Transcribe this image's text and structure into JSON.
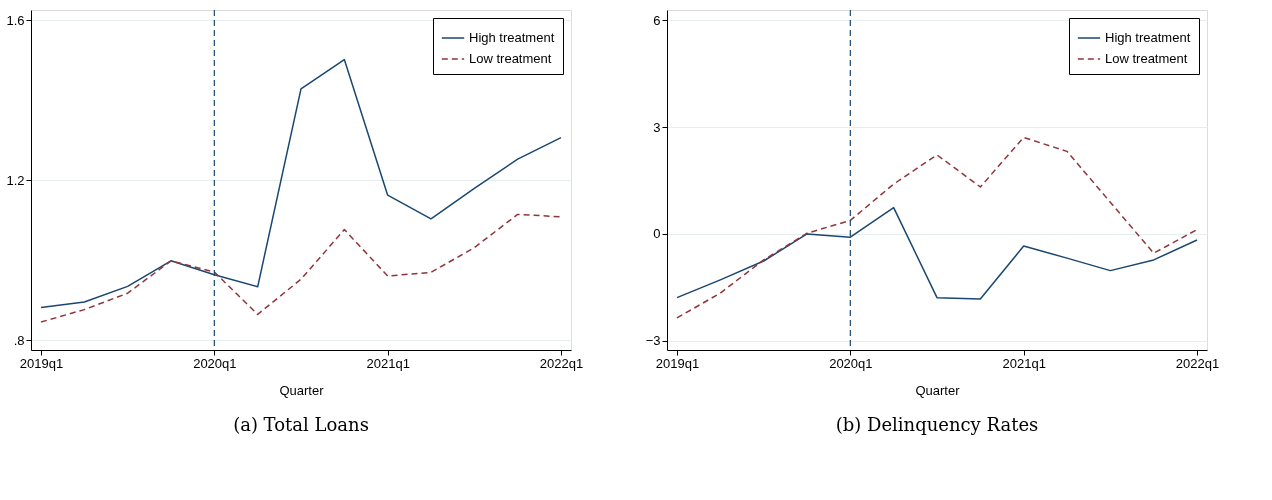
{
  "chart_data": [
    {
      "type": "line",
      "title": "(a) Total Loans",
      "xlabel": "Quarter",
      "categories": [
        "2019q1",
        null,
        null,
        null,
        "2020q1",
        null,
        null,
        null,
        "2021q1",
        null,
        null,
        null,
        "2022q1"
      ],
      "series": [
        {
          "name": "High treatment",
          "color": "#1a476f",
          "line_style": "solid",
          "values": [
            0.882,
            0.896,
            0.935,
            0.999,
            0.964,
            0.934,
            1.429,
            1.502,
            1.163,
            1.104,
            1.18,
            1.253,
            1.307
          ]
        },
        {
          "name": "Low treatment",
          "color": "#90353b",
          "line_style": "dashed",
          "values": [
            0.846,
            0.877,
            0.918,
            0.999,
            0.971,
            0.865,
            0.953,
            1.077,
            0.961,
            0.97,
            1.032,
            1.115,
            1.109
          ]
        }
      ],
      "ylim": [
        0.776,
        1.626
      ],
      "yticks": [
        {
          "value": 0.8,
          "label": ".8"
        },
        1.2,
        1.6
      ],
      "ref_lines": [
        {
          "axis": "x",
          "value": "2020q1",
          "color": "#1a476f",
          "line_style": "dashed"
        }
      ],
      "grid": "y",
      "legend": "top right",
      "marker": "none"
    },
    {
      "type": "line",
      "title": "(b) Delinquency Rates",
      "xlabel": "Quarter",
      "categories": [
        "2019q1",
        null,
        null,
        null,
        "2020q1",
        null,
        null,
        null,
        "2021q1",
        null,
        null,
        null,
        "2022q1"
      ],
      "series": [
        {
          "name": "High treatment",
          "color": "#1a476f",
          "line_style": "solid",
          "values": [
            -1.79,
            -1.29,
            -0.76,
            0,
            -0.09,
            0.74,
            -1.79,
            -1.83,
            -0.34,
            -0.68,
            -1.03,
            -0.73,
            -0.17
          ]
        },
        {
          "name": "Low treatment",
          "color": "#90353b",
          "line_style": "dashed",
          "values": [
            -2.36,
            -1.66,
            -0.73,
            0.02,
            0.38,
            1.4,
            2.22,
            1.32,
            2.71,
            2.32,
            0.89,
            -0.54,
            0.12
          ]
        }
      ],
      "ylim": [
        -3.26,
        6.29
      ],
      "yticks": [
        -3,
        0,
        3,
        6
      ],
      "ref_lines": [
        {
          "axis": "x",
          "value": "2020q1",
          "color": "#1a476f",
          "line_style": "dashed"
        }
      ],
      "grid": "y",
      "legend": "top right",
      "marker": "none"
    }
  ]
}
